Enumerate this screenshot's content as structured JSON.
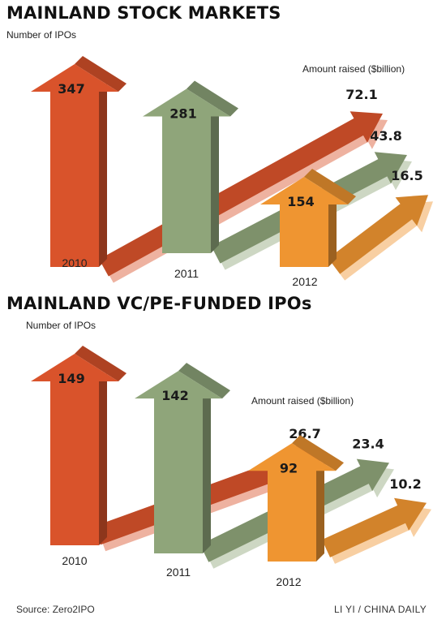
{
  "source": "Source: Zero2IPO",
  "credit": "LI YI / CHINA DAILY",
  "colors": {
    "2010": "#d9532b",
    "2011": "#8fa57a",
    "2012": "#ef9531"
  },
  "chart_data": [
    {
      "type": "bar",
      "title": "MAINLAND STOCK MARKETS",
      "count_label": "Number of IPOs",
      "amount_label": "Amount raised ($billion)",
      "categories": [
        "2010",
        "2011",
        "2012"
      ],
      "series": [
        {
          "name": "Number of IPOs",
          "values": [
            347,
            281,
            154
          ]
        },
        {
          "name": "Amount raised ($billion)",
          "values": [
            72.1,
            43.8,
            16.5
          ]
        }
      ]
    },
    {
      "type": "bar",
      "title": "MAINLAND VC/PE-FUNDED IPOs",
      "count_label": "Number of IPOs",
      "amount_label": "Amount raised ($billion)",
      "categories": [
        "2010",
        "2011",
        "2012"
      ],
      "series": [
        {
          "name": "Number of IPOs",
          "values": [
            149,
            142,
            92
          ]
        },
        {
          "name": "Amount raised ($billion)",
          "values": [
            26.7,
            23.4,
            10.2
          ]
        }
      ]
    }
  ]
}
